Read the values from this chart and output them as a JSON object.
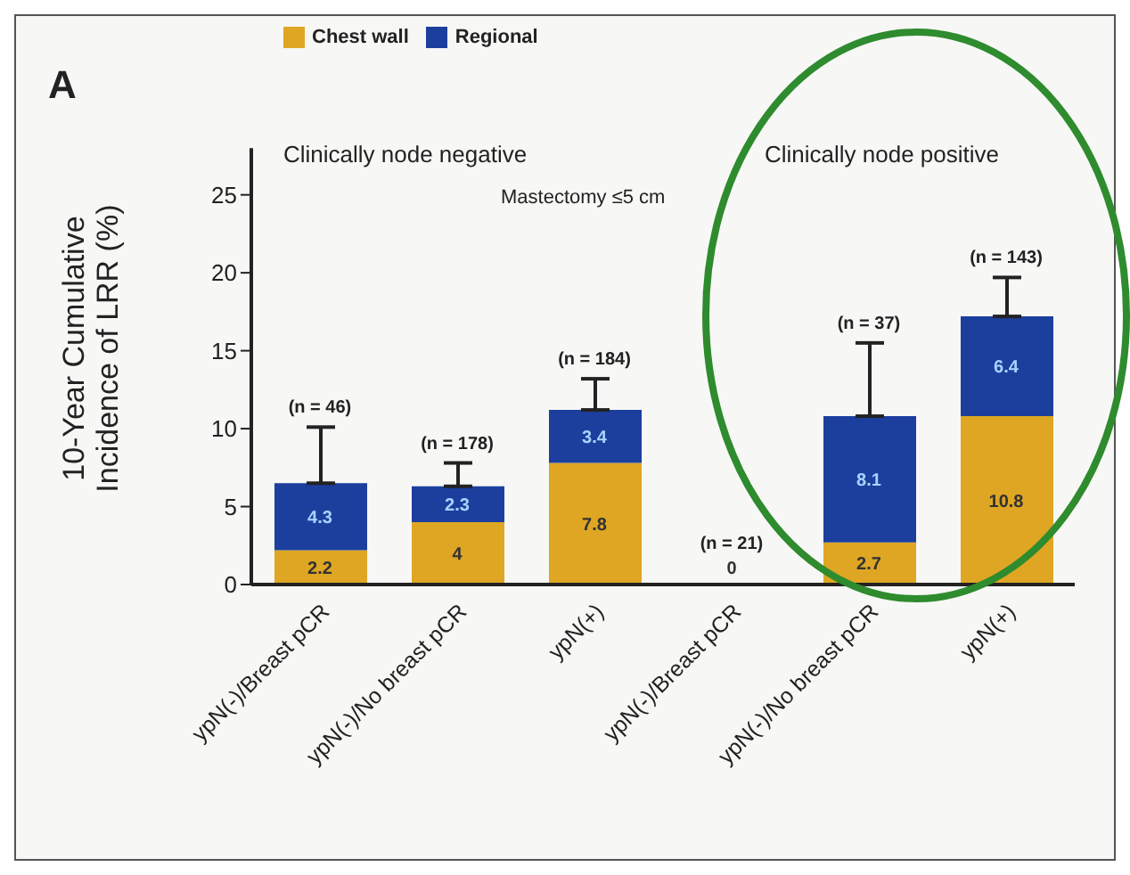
{
  "chart_data": {
    "type": "bar",
    "stacked": true,
    "ylabel": "10-Year Cumulative Incidence of LRR (%)",
    "categories": [
      "ypN(-)/Breast pCR",
      "ypN(-)/No breast pCR",
      "ypN(+)",
      "ypN(-)/Breast pCR",
      "ypN(-)/No breast pCR",
      "ypN(+)"
    ],
    "series": [
      {
        "name": "Chest wall",
        "color": "#dea623",
        "values": [
          2.2,
          4,
          7.8,
          0,
          2.7,
          10.8
        ],
        "value_labels": [
          "2.2",
          "4",
          "7.8",
          "0",
          "2.7",
          "10.8"
        ]
      },
      {
        "name": "Regional",
        "color": "#1c3f9e",
        "values": [
          4.3,
          2.3,
          3.4,
          0,
          8.1,
          6.4
        ],
        "value_labels": [
          "4.3",
          "2.3",
          "3.4",
          null,
          "8.1",
          "6.4"
        ],
        "errors": [
          [
            6.5,
            10.1
          ],
          [
            6.3,
            7.8
          ],
          [
            11.2,
            13.2
          ],
          null,
          [
            10.8,
            15.5
          ],
          [
            17.2,
            19.7
          ]
        ]
      }
    ],
    "ylim": [
      0,
      28
    ],
    "yticks": [
      0,
      5,
      10,
      15,
      20,
      25
    ],
    "legend": "top left",
    "annotations": [
      "A",
      "Clinically node negative",
      "Clinically node positive",
      "Mastectomy ≤5 cm",
      "(n = 46)",
      "(n = 178)",
      "(n = 184)",
      "(n = 21)",
      "(n = 37)",
      "(n = 143)"
    ]
  }
}
